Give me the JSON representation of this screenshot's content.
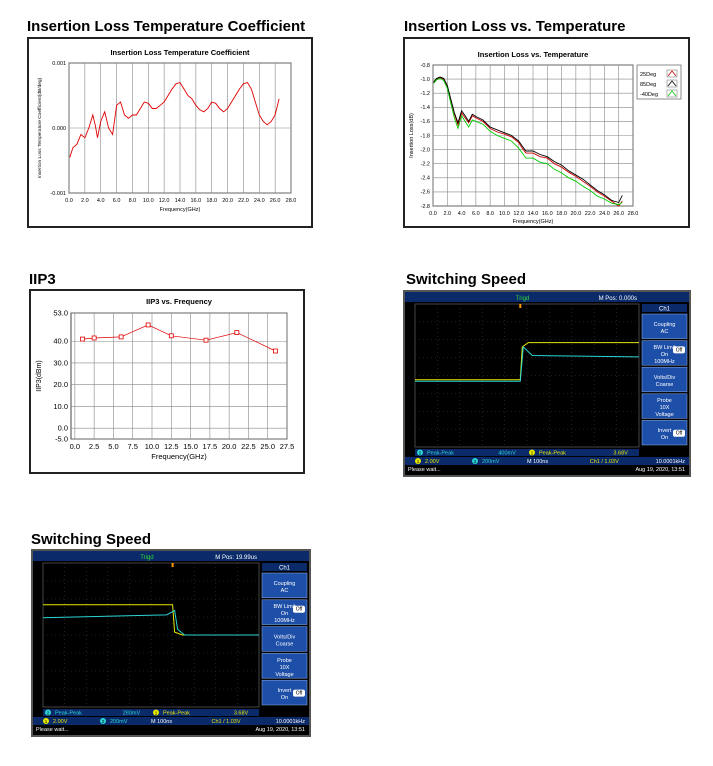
{
  "sections": {
    "ilc_title": "Insertion Loss Temperature Coefficient",
    "ilt_title": "Insertion Loss vs. Temperature",
    "iip3_title": "IIP3",
    "sw1_title": "Switching Speed",
    "sw2_title": "Switching Speed"
  },
  "chart_data": [
    {
      "type": "line",
      "title": "Insertion Loss Temperature Coefficient",
      "xlabel": "Frequency(GHz)",
      "ylabel": "Insertion Loss Temperature Coefficient(dB/deg)",
      "xlim": [
        0,
        28
      ],
      "ylim": [
        -0.001,
        0.001
      ],
      "xticks": [
        "0.0",
        "2.0",
        "4.0",
        "6.0",
        "8.0",
        "10.0",
        "12.0",
        "14.0",
        "16.0",
        "18.0",
        "20.0",
        "22.0",
        "24.0",
        "26.0",
        "28.0"
      ],
      "yticks": [
        "0.001",
        "0.000",
        "-0.001"
      ],
      "grid": true,
      "series": [
        {
          "color": "#e00000",
          "x": [
            0.1,
            0.5,
            1,
            1.5,
            2,
            2.5,
            3,
            3.3,
            3.6,
            4,
            4.5,
            5,
            5.5,
            6,
            6.5,
            7,
            7.5,
            8,
            8.5,
            9,
            9.5,
            10,
            10.5,
            11,
            11.5,
            12,
            12.5,
            13,
            13.5,
            14,
            14.5,
            15,
            15.5,
            16,
            16.5,
            17,
            17.5,
            18,
            18.5,
            19,
            19.5,
            20,
            20.5,
            21,
            21.5,
            22,
            22.5,
            23,
            23.5,
            24,
            24.5,
            25,
            25.5,
            26,
            26.5
          ],
          "values": [
            -0.00045,
            -0.0003,
            -0.00025,
            -0.0001,
            -0.00015,
            0.0,
            0.0002,
            5e-05,
            -0.00015,
            0.0001,
            0.00025,
            0.0,
            -0.0001,
            0.00035,
            0.0004,
            0.0002,
            0.00015,
            0.0002,
            0.0002,
            0.0003,
            0.0004,
            0.00038,
            0.0003,
            0.0003,
            0.00035,
            0.0004,
            0.0005,
            0.0006,
            0.00068,
            0.0007,
            0.0006,
            0.0005,
            0.00045,
            0.00035,
            0.00028,
            0.00025,
            0.0003,
            0.0004,
            0.00038,
            0.0003,
            0.00025,
            0.0003,
            0.0004,
            0.0005,
            0.0006,
            0.00068,
            0.0007,
            0.0006,
            0.0004,
            0.0002,
            0.0001,
            5e-05,
            0.0001,
            0.0002,
            0.00045
          ]
        }
      ]
    },
    {
      "type": "line",
      "title": "Insertion Loss vs. Temperature",
      "xlabel": "Frequency(GHz)",
      "ylabel": "Insertion Loss(dB)",
      "xlim": [
        0,
        28
      ],
      "ylim": [
        -2.8,
        -0.8
      ],
      "xticks": [
        "0.0",
        "2.0",
        "4.0",
        "6.0",
        "8.0",
        "10.0",
        "12.0",
        "14.0",
        "16.0",
        "18.0",
        "20.0",
        "22.0",
        "24.0",
        "26.0",
        "28.0"
      ],
      "yticks": [
        "-0.8",
        "-1.0",
        "-1.2",
        "-1.4",
        "-1.6",
        "-1.8",
        "-2.0",
        "-2.2",
        "-2.4",
        "-2.6",
        "-2.8"
      ],
      "grid": true,
      "legend": "right",
      "series": [
        {
          "name": "25Deg",
          "color": "#cc0000",
          "x": [
            0.1,
            0.5,
            1,
            1.5,
            2,
            2.5,
            3,
            3.5,
            4,
            4.5,
            5,
            5.5,
            6,
            7,
            8,
            9,
            10,
            11,
            12,
            12.5,
            13,
            14,
            15,
            16,
            17,
            18,
            19,
            20,
            21,
            22,
            23,
            24,
            25,
            26,
            26.5
          ],
          "values": [
            -1.05,
            -1.0,
            -0.98,
            -1.0,
            -1.1,
            -1.3,
            -1.5,
            -1.65,
            -1.48,
            -1.55,
            -1.62,
            -1.52,
            -1.55,
            -1.6,
            -1.7,
            -1.75,
            -1.78,
            -1.82,
            -1.9,
            -1.98,
            -2.05,
            -2.05,
            -2.1,
            -2.12,
            -2.2,
            -2.25,
            -2.32,
            -2.38,
            -2.45,
            -2.52,
            -2.6,
            -2.66,
            -2.73,
            -2.8,
            -2.73
          ]
        },
        {
          "name": "85Deg",
          "color": "#000000",
          "x": [
            0.1,
            0.5,
            1,
            1.5,
            2,
            2.5,
            3,
            3.5,
            4,
            4.5,
            5,
            5.5,
            6,
            7,
            8,
            9,
            10,
            11,
            12,
            12.5,
            13,
            14,
            15,
            16,
            17,
            18,
            19,
            20,
            21,
            22,
            23,
            24,
            25,
            26,
            26.5
          ],
          "values": [
            -1.04,
            -0.99,
            -0.97,
            -0.99,
            -1.09,
            -1.29,
            -1.48,
            -1.62,
            -1.45,
            -1.52,
            -1.6,
            -1.5,
            -1.53,
            -1.58,
            -1.68,
            -1.72,
            -1.76,
            -1.8,
            -1.88,
            -1.95,
            -2.02,
            -2.02,
            -2.07,
            -2.1,
            -2.17,
            -2.22,
            -2.3,
            -2.36,
            -2.42,
            -2.5,
            -2.58,
            -2.64,
            -2.72,
            -2.75,
            -2.65
          ]
        },
        {
          "name": "-40Deg",
          "color": "#00cc00",
          "x": [
            0.1,
            0.5,
            1,
            1.5,
            2,
            2.5,
            3,
            3.5,
            4,
            4.5,
            5,
            5.5,
            6,
            7,
            8,
            9,
            10,
            11,
            12,
            12.5,
            13,
            14,
            15,
            16,
            17,
            18,
            19,
            20,
            21,
            22,
            23,
            24,
            25,
            26,
            26.5
          ],
          "values": [
            -1.06,
            -1.01,
            -0.99,
            -1.02,
            -1.13,
            -1.35,
            -1.55,
            -1.7,
            -1.52,
            -1.6,
            -1.68,
            -1.58,
            -1.6,
            -1.64,
            -1.74,
            -1.8,
            -1.84,
            -1.88,
            -1.98,
            -2.05,
            -2.12,
            -2.12,
            -2.18,
            -2.2,
            -2.28,
            -2.33,
            -2.4,
            -2.45,
            -2.52,
            -2.58,
            -2.66,
            -2.7,
            -2.76,
            -2.78,
            -2.75
          ]
        }
      ]
    },
    {
      "type": "line",
      "title": "IIP3 vs. Frequency",
      "xlabel": "Frequency(GHz)",
      "ylabel": "IIP3(dBm)",
      "xlim": [
        -0.5,
        27.5
      ],
      "ylim": [
        -5,
        53
      ],
      "xticks": [
        "0.0",
        "2.5",
        "5.0",
        "7.5",
        "10.0",
        "12.5",
        "15.0",
        "17.5",
        "20.0",
        "22.5",
        "25.0",
        "27.5"
      ],
      "yticks": [
        "53.0",
        "40.0",
        "30.0",
        "20.0",
        "10.0",
        "0.0",
        "-5.0"
      ],
      "grid": true,
      "series": [
        {
          "color": "#e00000",
          "x": [
            1,
            2.5,
            6,
            9.5,
            12.5,
            17,
            21,
            26
          ],
          "values": [
            41,
            41.5,
            42,
            47.5,
            42.5,
            40.5,
            44,
            35.5
          ]
        }
      ]
    }
  ],
  "scope1": {
    "top_center": "Trigd",
    "top_right": "M Pos: 0.000s",
    "menu_header": "Ch1",
    "menu": [
      {
        "l1": "Coupling",
        "l2": "AC",
        "l3": ""
      },
      {
        "l1": "BW Limit",
        "l2": "On",
        "l3": "100MHz"
      },
      {
        "l1": "Volts/Div",
        "l2": "Coarse",
        "l3": ""
      },
      {
        "l1": "Probe",
        "l2": "10X",
        "l3": "Voltage"
      },
      {
        "l1": "Invert",
        "l2": "On",
        "l3": ""
      }
    ],
    "off_label": "Off",
    "meas1_ch": "2",
    "meas1_name": "Peak-Peak",
    "meas1_val": "400mV",
    "meas2_ch": "1",
    "meas2_name": "Peak-Peak",
    "meas2_val": "3.68V",
    "ch1_scale": "2.00V",
    "ch2_scale": "200mV",
    "timebase": "M 100ns",
    "trigger": "Ch1 / 1.03V",
    "freq": "10.0001kHz",
    "status": "Please wait...",
    "date": "Aug 19, 2020, 13:51"
  },
  "scope2": {
    "top_center": "Trigd",
    "top_right": "M Pos: 19.99us",
    "menu_header": "Ch1",
    "menu": [
      {
        "l1": "Coupling",
        "l2": "AC",
        "l3": ""
      },
      {
        "l1": "BW Limit",
        "l2": "On",
        "l3": "100MHz"
      },
      {
        "l1": "Volts/Div",
        "l2": "Coarse",
        "l3": ""
      },
      {
        "l1": "Probe",
        "l2": "10X",
        "l3": "Voltage"
      },
      {
        "l1": "Invert",
        "l2": "On",
        "l3": ""
      }
    ],
    "off_label": "Off",
    "meas1_ch": "2",
    "meas1_name": "Peak-Peak",
    "meas1_val": "280mV",
    "meas2_ch": "1",
    "meas2_name": "Peak-Peak",
    "meas2_val": "3.68V",
    "ch1_scale": "2.00V",
    "ch2_scale": "200mV",
    "timebase": "M 100ns",
    "trigger": "Ch1 / 1.03V",
    "freq": "10.0001kHz",
    "status": "Please wait...",
    "date": "Aug 19, 2020, 13:51"
  }
}
